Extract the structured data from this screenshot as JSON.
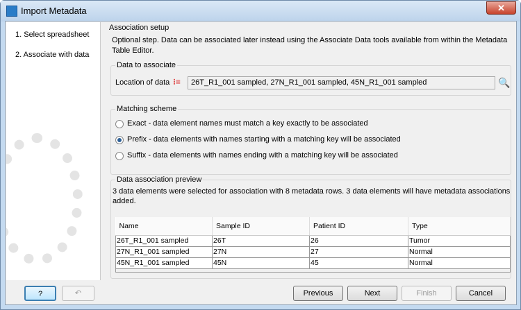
{
  "window": {
    "title": "Import Metadata",
    "close": "✕"
  },
  "steps": [
    "1.  Select spreadsheet",
    "2.  Associate with data"
  ],
  "main": {
    "section": "Association setup",
    "description": "Optional step. Data can be associated later instead using the Associate Data tools available from within the Metadata Table Editor.",
    "data_group": {
      "title": "Data to associate",
      "label": "Location of data",
      "value": "26T_R1_001 sampled, 27N_R1_001 sampled, 45N_R1_001 sampled"
    },
    "matching": {
      "title": "Matching scheme",
      "options": [
        {
          "label": "Exact - data element names must match a key exactly to be associated",
          "selected": false
        },
        {
          "label": "Prefix - data elements with names starting with a matching key will be associated",
          "selected": true
        },
        {
          "label": "Suffix - data elements with names ending with a matching key will be associated",
          "selected": false
        }
      ]
    },
    "preview": {
      "title": "Data association preview",
      "summary": "3 data elements were selected for association with 8 metadata rows. 3 data elements will have metadata associations added.",
      "columns": [
        "Name",
        "Sample ID",
        "Patient ID",
        "Type"
      ],
      "rows": [
        [
          "26T_R1_001 sampled",
          "26T",
          "26",
          "Tumor"
        ],
        [
          "27N_R1_001 sampled",
          "27N",
          "27",
          "Normal"
        ],
        [
          "45N_R1_001 sampled",
          "45N",
          "45",
          "Normal"
        ]
      ]
    }
  },
  "buttons": {
    "help": "?",
    "previous": "Previous",
    "next": "Next",
    "finish": "Finish",
    "cancel": "Cancel"
  }
}
